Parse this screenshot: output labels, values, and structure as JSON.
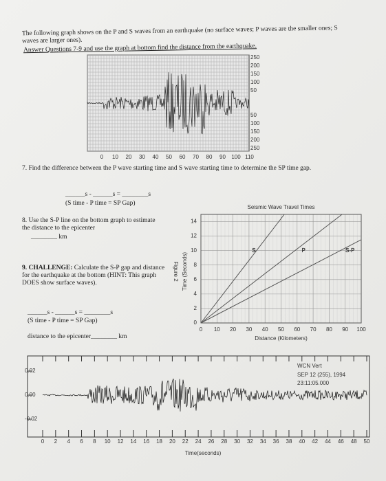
{
  "intro": {
    "line1": "The following graph shows on the P and S waves from an earthquake (no surface waves; P waves are the smaller ones; S waves are larger ones).",
    "line2": "Answer Questions 7-9 and use the graph at bottom find the distance from the earthquake."
  },
  "seismogram_top": {
    "y_labels": [
      "250",
      "200",
      "150",
      "100",
      "50",
      "50",
      "100",
      "150",
      "200",
      "250"
    ],
    "x_labels": [
      "0",
      "10",
      "20",
      "30",
      "40",
      "50",
      "60",
      "70",
      "80",
      "90",
      "100",
      "110"
    ]
  },
  "question7": {
    "text": "7. Find the difference between the P wave starting time and S wave starting time to determine the SP time gap.",
    "blank": "______s - ______s = ________s",
    "formula": "(S time - P time = SP Gap)"
  },
  "question8": {
    "text": "8. Use the S-P line on the bottom graph to estimate the distance to the epicenter",
    "blank": "________ km"
  },
  "question9": {
    "text_bold": "9. CHALLENGE:",
    "text": "Calculate the S-P gap and distance for the earthquake at the bottom (HINT: This graph DOES show surface waves).",
    "blank": "______s - ______s = ________s",
    "formula": "(S time - P time = SP Gap)",
    "distance": "distance to the epicenter________ km"
  },
  "chart_data": {
    "type": "line",
    "title": "Seismic Wave Travel Times",
    "figure_label": "Figure 2",
    "x_label": "Distance (Kilometers)",
    "y_label": "Time (Seconds)",
    "xlim": [
      0,
      100
    ],
    "ylim": [
      0,
      15
    ],
    "xticks": [
      0,
      10,
      20,
      30,
      40,
      50,
      60,
      70,
      80,
      90,
      100
    ],
    "yticks": [
      0,
      2,
      4,
      6,
      8,
      10,
      12,
      14
    ],
    "grid": true,
    "series": [
      {
        "name": "S",
        "color": "#555555",
        "x": [
          0,
          52
        ],
        "values": [
          0,
          15
        ]
      },
      {
        "name": "P",
        "color": "#555555",
        "x": [
          0,
          88
        ],
        "values": [
          0,
          15
        ]
      },
      {
        "name": "S-P",
        "color": "#555555",
        "x": [
          0,
          100
        ],
        "values": [
          0,
          11.5
        ]
      }
    ]
  },
  "seismogram_bottom": {
    "yticks": [
      {
        "value": 0.02,
        "label": "0.02"
      },
      {
        "value": 0,
        "label": "0.00"
      },
      {
        "value": -0.02,
        "label": "-0.02"
      }
    ],
    "xticks": [
      0,
      2,
      4,
      6,
      8,
      10,
      12,
      14,
      16,
      18,
      20,
      22,
      24,
      26,
      28,
      30,
      32,
      34,
      36,
      38,
      40,
      42,
      44,
      46,
      48,
      50
    ],
    "x_label": "Time(seconds)",
    "station": "WCN Vert",
    "date": "SEP 12 (255), 1994",
    "time": "23:11:05.000"
  }
}
